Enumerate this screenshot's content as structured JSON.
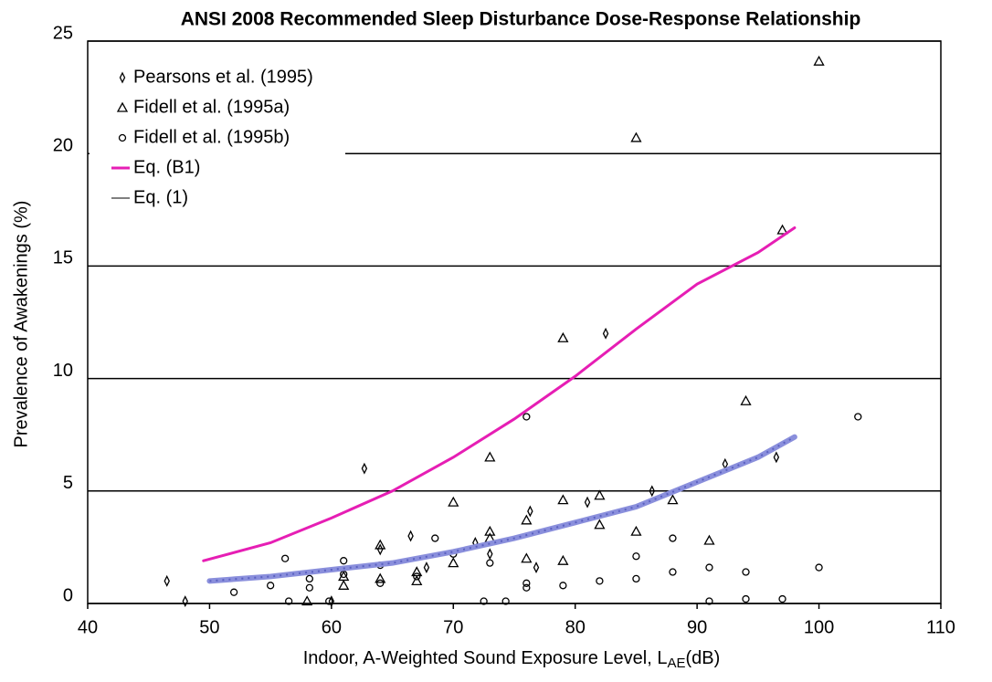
{
  "chart_data": {
    "type": "scatter",
    "title": "ANSI 2008 Recommended Sleep Disturbance Dose-Response Relationship",
    "ylabel": "Prevalence of Awakenings (%)",
    "xlabel": [
      "Indoor, A-Weighted Sound Exposure Level, L",
      "AE",
      "(dB)"
    ],
    "xlim": [
      40,
      110
    ],
    "xticks": [
      40,
      50,
      60,
      70,
      80,
      90,
      100,
      110
    ],
    "ylim": [
      0,
      25
    ],
    "yticks": [
      0,
      5,
      10,
      15,
      20,
      25
    ],
    "grid": true,
    "legend": "upper left",
    "series": [
      {
        "name": "Pearsons et al. (1995)",
        "marker": "diamond",
        "color": "#000000",
        "x": [
          46.5,
          48,
          60,
          62.7,
          64,
          66.5,
          67.8,
          71.8,
          73,
          76.3,
          76.8,
          81,
          82.5,
          86.3,
          92.3,
          96.5
        ],
        "values": [
          1.0,
          0.1,
          0.1,
          6.0,
          2.4,
          3.0,
          1.6,
          2.7,
          2.2,
          4.1,
          1.6,
          4.5,
          12.0,
          5.0,
          6.2,
          6.5
        ]
      },
      {
        "name": "Fidell et al. (1995a)",
        "marker": "triangle",
        "color": "#000000",
        "x": [
          58,
          61,
          61,
          64,
          64,
          67,
          67,
          70,
          70,
          73,
          73,
          73,
          76,
          76,
          79,
          79,
          79,
          82,
          82,
          85,
          85,
          88,
          91,
          94,
          97,
          100
        ],
        "values": [
          0.1,
          0.8,
          1.2,
          2.6,
          1.1,
          1.0,
          1.4,
          4.5,
          1.8,
          6.5,
          3.2,
          2.9,
          3.7,
          2.0,
          11.8,
          4.6,
          1.9,
          4.8,
          3.5,
          20.7,
          3.2,
          4.6,
          2.8,
          9.0,
          16.6,
          24.1
        ]
      },
      {
        "name": "Fidell et al. (1995b)",
        "marker": "circle",
        "color": "#000000",
        "x": [
          52,
          55,
          56.2,
          56.5,
          58.2,
          58.2,
          59.8,
          61,
          61,
          64,
          64,
          67,
          68.5,
          70,
          72.5,
          73,
          74.3,
          76,
          76,
          76,
          79,
          82,
          85,
          85,
          88,
          88,
          91,
          91,
          94,
          94,
          97,
          100,
          103.2
        ],
        "values": [
          0.5,
          0.8,
          2.0,
          0.1,
          1.1,
          0.7,
          0.1,
          1.9,
          1.3,
          1.7,
          0.9,
          1.2,
          2.9,
          2.2,
          0.1,
          1.8,
          0.1,
          8.3,
          0.9,
          0.7,
          0.8,
          1.0,
          2.1,
          1.1,
          2.9,
          1.4,
          1.6,
          0.1,
          1.4,
          0.2,
          0.2,
          1.6,
          8.3
        ]
      },
      {
        "name": "Eq. (B1)",
        "marker": "line",
        "color": "#e61eb4",
        "x": [
          49.5,
          55,
          60,
          65,
          70,
          75,
          80,
          85,
          90,
          95,
          98
        ],
        "values": [
          1.9,
          2.7,
          3.8,
          5.0,
          6.5,
          8.2,
          10.1,
          12.2,
          14.2,
          15.6,
          16.7
        ]
      },
      {
        "name": "Eq. (1)",
        "marker": "line",
        "color": "#8a8fdc",
        "x": [
          50,
          55,
          60,
          65,
          70,
          75,
          80,
          85,
          90,
          95,
          98
        ],
        "values": [
          1.0,
          1.2,
          1.5,
          1.8,
          2.3,
          2.9,
          3.6,
          4.3,
          5.4,
          6.5,
          7.4
        ]
      }
    ]
  }
}
